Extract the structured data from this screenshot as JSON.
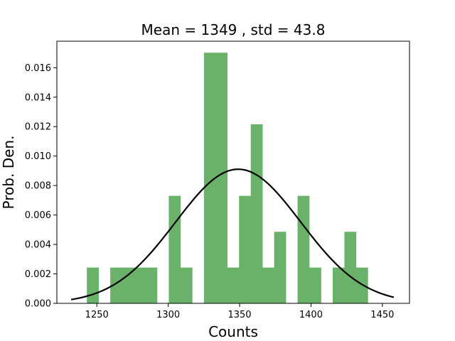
{
  "chart_data": {
    "type": "bar",
    "title": "Mean = 1349 , std = 43.8",
    "xlabel": "Counts",
    "ylabel": "Prob. Den.",
    "xlim": [
      1222,
      1469
    ],
    "ylim": [
      0,
      0.0178
    ],
    "grid": false,
    "legend": "none",
    "xticks": [
      1250,
      1300,
      1350,
      1400,
      1450
    ],
    "xtick_labels": [
      "1250",
      "1300",
      "1350",
      "1400",
      "1450"
    ],
    "yticks": [
      0,
      0.002,
      0.004,
      0.006,
      0.008,
      0.01,
      0.012,
      0.014,
      0.016
    ],
    "ytick_labels": [
      "0.000",
      "0.002",
      "0.004",
      "0.006",
      "0.008",
      "0.010",
      "0.012",
      "0.014",
      "0.016"
    ],
    "histogram": {
      "color": "#6ab26a",
      "bin_width": 8.2,
      "bin_starts": [
        1243,
        1251.2,
        1259.4,
        1267.6,
        1275.8,
        1284,
        1292.2,
        1300.4,
        1308.6,
        1316.8,
        1325,
        1333.2,
        1341.4,
        1349.6,
        1357.8,
        1366,
        1374.2,
        1382.4,
        1390.6,
        1398.8,
        1407,
        1415.2,
        1423.4,
        1431.6,
        1439.8
      ],
      "values": [
        0.00243,
        0,
        0.00243,
        0.00243,
        0.00243,
        0.00243,
        0,
        0.0073,
        0.00243,
        0,
        0.01702,
        0.01702,
        0.00243,
        0.0073,
        0.01216,
        0.00243,
        0.00486,
        0,
        0.0073,
        0.00243,
        0,
        0.00243,
        0.00486,
        0.00243,
        0
      ]
    },
    "fit_curve": {
      "type": "normal_pdf",
      "mean": 1349,
      "std": 43.8,
      "x_range": [
        1232,
        1458
      ],
      "color": "#000000"
    }
  }
}
